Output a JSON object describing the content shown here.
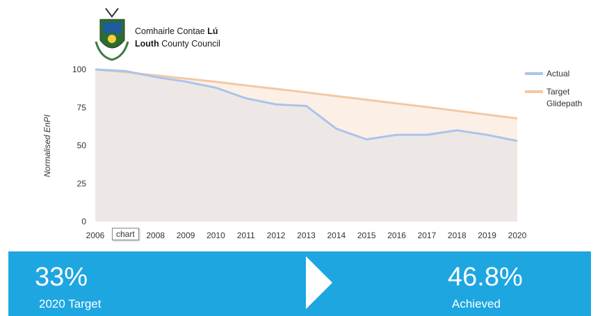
{
  "logo": {
    "line1_prefix": "Comhairle Contae ",
    "line1_bold": "Lú",
    "line2_bold": "Louth",
    "line2_suffix": " County Council",
    "emblem": "crest-icon"
  },
  "tooltip": {
    "text": "chart"
  },
  "chart_data": {
    "type": "area",
    "title": "",
    "xlabel": "",
    "ylabel": "Normalised EnPI",
    "x": [
      "2006",
      "2007",
      "2008",
      "2009",
      "2010",
      "2011",
      "2012",
      "2013",
      "2014",
      "2015",
      "2016",
      "2017",
      "2018",
      "2019",
      "2020"
    ],
    "yticks": [
      0,
      25,
      50,
      75,
      100
    ],
    "ylim": [
      0,
      100
    ],
    "legend_position": "right",
    "series": [
      {
        "name": "Actual",
        "color": "#a9c4ec",
        "fill": "#ede8e6",
        "values": [
          100,
          99,
          95,
          92,
          88,
          81,
          77,
          76,
          61,
          54,
          57,
          57,
          60,
          57,
          53
        ]
      },
      {
        "name": "Target Glidepath",
        "legend_lines": [
          "Target",
          "Glidepath"
        ],
        "color": "#f3c8a4",
        "fill": "#fcefe6",
        "values": [
          100,
          98.2,
          96.1,
          94,
          91.9,
          89.5,
          87.2,
          84.9,
          82.5,
          80.1,
          77.7,
          75.3,
          72.8,
          70.3,
          67.8
        ]
      }
    ]
  },
  "kpis": [
    {
      "value": "33%",
      "label": "2020 Target"
    },
    {
      "value": "46.8%",
      "label": "Achieved"
    }
  ],
  "colors": {
    "banner": "#1ea6e1",
    "arrow": "#ffffff"
  }
}
